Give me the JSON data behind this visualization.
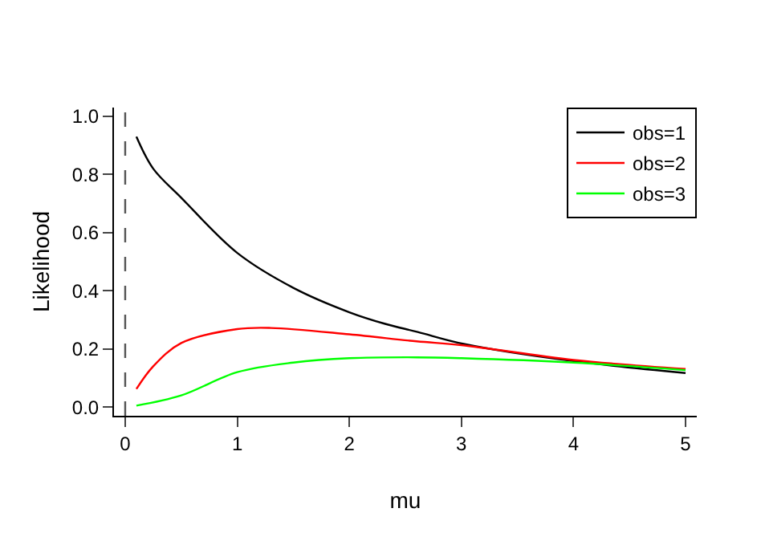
{
  "chart_data": {
    "type": "line",
    "xlabel": "mu",
    "ylabel": "Likelihood",
    "series": [
      {
        "name": "obs=1",
        "color": "#000000",
        "x": [
          0.1,
          0.25,
          0.5,
          1,
          1.5,
          2,
          2.32,
          2.61,
          3.02,
          4,
          5
        ],
        "values": [
          0.93,
          0.82,
          0.72,
          0.53,
          0.41,
          0.326,
          0.286,
          0.258,
          0.217,
          0.158,
          0.117
        ]
      },
      {
        "name": "obs=2",
        "color": "#ff0000",
        "x": [
          0.1,
          0.25,
          0.5,
          1,
          1.3,
          2,
          2.6,
          3,
          4,
          5
        ],
        "values": [
          0.062,
          0.14,
          0.22,
          0.268,
          0.272,
          0.25,
          0.226,
          0.213,
          0.162,
          0.131
        ]
      },
      {
        "name": "obs=3",
        "color": "#00ff00",
        "x": [
          0.1,
          0.5,
          1,
          1.5,
          2,
          2.6,
          3,
          4,
          5
        ],
        "values": [
          0.005,
          0.04,
          0.12,
          0.153,
          0.168,
          0.171,
          0.168,
          0.153,
          0.127
        ]
      }
    ],
    "xlim": [
      -0.1,
      5.1
    ],
    "xticks": [
      0,
      1,
      2,
      3,
      4,
      5
    ],
    "ylim": [
      -0.03,
      1.03
    ],
    "yticks": [
      {
        "value": 0,
        "label": "0.0"
      },
      {
        "value": 0.2,
        "label": "0.2"
      },
      {
        "value": 0.4,
        "label": "0.4"
      },
      {
        "value": 0.6,
        "label": "0.6"
      },
      {
        "value": 0.8,
        "label": "0.8"
      },
      {
        "value": 1,
        "label": "1.0"
      }
    ],
    "ref_lines": [
      {
        "axis": "x",
        "value": 0,
        "color": "#555555",
        "line_style": "dashed"
      }
    ],
    "grid": false,
    "legend": "top right",
    "marker": "none",
    "line_style": "solid"
  }
}
